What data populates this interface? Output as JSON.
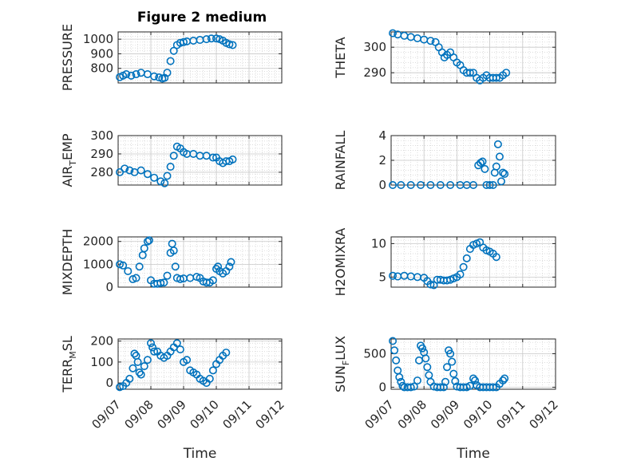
{
  "figure": {
    "title": "Figure 2 medium",
    "xlabel": "Time",
    "xtick_labels": [
      "09/07",
      "09/08",
      "09/09",
      "09/10",
      "09/11",
      "09/12"
    ],
    "marker_color": "#0072BD",
    "grid": true,
    "minor_grid": true
  },
  "chart_data": [
    {
      "type": "scatter",
      "ylabel_main": "PRESSURE",
      "ylabel_sub": "",
      "ylim": [
        700,
        1050
      ],
      "yticks": [
        800,
        900,
        1000
      ],
      "xlim": [
        0,
        5
      ],
      "points": [
        [
          0.05,
          740
        ],
        [
          0.15,
          750
        ],
        [
          0.25,
          760
        ],
        [
          0.4,
          750
        ],
        [
          0.55,
          760
        ],
        [
          0.7,
          770
        ],
        [
          0.9,
          760
        ],
        [
          1.1,
          745
        ],
        [
          1.25,
          738
        ],
        [
          1.35,
          730
        ],
        [
          1.42,
          735
        ],
        [
          1.5,
          770
        ],
        [
          1.6,
          850
        ],
        [
          1.7,
          920
        ],
        [
          1.8,
          960
        ],
        [
          1.9,
          975
        ],
        [
          2.0,
          980
        ],
        [
          2.1,
          985
        ],
        [
          2.3,
          990
        ],
        [
          2.5,
          995
        ],
        [
          2.7,
          1000
        ],
        [
          2.85,
          1005
        ],
        [
          3.0,
          1005
        ],
        [
          3.1,
          1000
        ],
        [
          3.2,
          990
        ],
        [
          3.3,
          975
        ],
        [
          3.4,
          965
        ],
        [
          3.5,
          960
        ]
      ]
    },
    {
      "type": "scatter",
      "ylabel_main": "THETA",
      "ylabel_sub": "",
      "ylim": [
        286,
        306
      ],
      "yticks": [
        290,
        300
      ],
      "xlim": [
        0,
        5
      ],
      "points": [
        [
          0.05,
          305.5
        ],
        [
          0.2,
          305
        ],
        [
          0.4,
          304.5
        ],
        [
          0.6,
          304
        ],
        [
          0.8,
          303.5
        ],
        [
          1.0,
          303
        ],
        [
          1.2,
          302.5
        ],
        [
          1.35,
          302
        ],
        [
          1.45,
          300
        ],
        [
          1.55,
          298
        ],
        [
          1.62,
          296
        ],
        [
          1.7,
          297
        ],
        [
          1.8,
          298
        ],
        [
          1.9,
          296
        ],
        [
          2.0,
          294
        ],
        [
          2.1,
          293
        ],
        [
          2.2,
          291
        ],
        [
          2.3,
          290
        ],
        [
          2.4,
          290
        ],
        [
          2.5,
          290
        ],
        [
          2.6,
          288
        ],
        [
          2.7,
          287
        ],
        [
          2.8,
          288
        ],
        [
          2.9,
          289
        ],
        [
          3.0,
          288
        ],
        [
          3.1,
          288
        ],
        [
          3.2,
          288
        ],
        [
          3.3,
          288
        ],
        [
          3.4,
          289
        ],
        [
          3.5,
          290
        ]
      ]
    },
    {
      "type": "scatter",
      "ylabel_main": "AIR",
      "ylabel_sub": "T",
      "ylabel_tail": "EMP",
      "ylim": [
        273,
        300
      ],
      "yticks": [
        280,
        290,
        300
      ],
      "xlim": [
        0,
        5
      ],
      "points": [
        [
          0.05,
          280
        ],
        [
          0.2,
          282
        ],
        [
          0.35,
          281
        ],
        [
          0.5,
          280
        ],
        [
          0.7,
          281
        ],
        [
          0.9,
          279
        ],
        [
          1.1,
          277
        ],
        [
          1.3,
          275
        ],
        [
          1.42,
          274
        ],
        [
          1.5,
          278
        ],
        [
          1.6,
          283
        ],
        [
          1.7,
          289
        ],
        [
          1.8,
          294
        ],
        [
          1.9,
          293
        ],
        [
          2.0,
          291
        ],
        [
          2.1,
          290
        ],
        [
          2.3,
          290
        ],
        [
          2.5,
          289
        ],
        [
          2.7,
          289
        ],
        [
          2.9,
          288
        ],
        [
          3.0,
          288
        ],
        [
          3.1,
          286
        ],
        [
          3.2,
          285
        ],
        [
          3.3,
          286
        ],
        [
          3.4,
          286
        ],
        [
          3.5,
          287
        ]
      ]
    },
    {
      "type": "scatter",
      "ylabel_main": "RAINFALL",
      "ylabel_sub": "",
      "ylim": [
        0,
        4
      ],
      "yticks": [
        0,
        2,
        4
      ],
      "xlim": [
        0,
        5
      ],
      "points": [
        [
          0.05,
          0
        ],
        [
          0.3,
          0
        ],
        [
          0.6,
          0
        ],
        [
          0.9,
          0
        ],
        [
          1.2,
          0
        ],
        [
          1.5,
          0
        ],
        [
          1.8,
          0
        ],
        [
          2.1,
          0
        ],
        [
          2.3,
          0
        ],
        [
          2.5,
          0
        ],
        [
          2.65,
          1.6
        ],
        [
          2.72,
          1.8
        ],
        [
          2.78,
          1.9
        ],
        [
          2.85,
          1.3
        ],
        [
          2.9,
          0
        ],
        [
          3.0,
          0
        ],
        [
          3.1,
          0
        ],
        [
          3.15,
          1.0
        ],
        [
          3.2,
          1.5
        ],
        [
          3.25,
          3.3
        ],
        [
          3.3,
          2.3
        ],
        [
          3.35,
          0.3
        ],
        [
          3.4,
          1.0
        ],
        [
          3.45,
          0.9
        ]
      ]
    },
    {
      "type": "scatter",
      "ylabel_main": "MIXDEPTH",
      "ylabel_sub": "",
      "ylim": [
        0,
        2200
      ],
      "yticks": [
        0,
        1000,
        2000
      ],
      "xlim": [
        0,
        5
      ],
      "points": [
        [
          0.05,
          1000
        ],
        [
          0.15,
          950
        ],
        [
          0.3,
          700
        ],
        [
          0.45,
          350
        ],
        [
          0.55,
          400
        ],
        [
          0.65,
          900
        ],
        [
          0.75,
          1400
        ],
        [
          0.8,
          1700
        ],
        [
          0.9,
          2000
        ],
        [
          0.95,
          2050
        ],
        [
          1.0,
          300
        ],
        [
          1.1,
          150
        ],
        [
          1.2,
          150
        ],
        [
          1.3,
          180
        ],
        [
          1.4,
          200
        ],
        [
          1.5,
          500
        ],
        [
          1.6,
          1500
        ],
        [
          1.65,
          1900
        ],
        [
          1.7,
          1600
        ],
        [
          1.75,
          900
        ],
        [
          1.8,
          400
        ],
        [
          1.9,
          350
        ],
        [
          2.0,
          380
        ],
        [
          2.2,
          400
        ],
        [
          2.4,
          450
        ],
        [
          2.5,
          400
        ],
        [
          2.6,
          250
        ],
        [
          2.7,
          200
        ],
        [
          2.8,
          200
        ],
        [
          2.9,
          300
        ],
        [
          3.0,
          800
        ],
        [
          3.05,
          900
        ],
        [
          3.1,
          700
        ],
        [
          3.2,
          600
        ],
        [
          3.3,
          700
        ],
        [
          3.4,
          900
        ],
        [
          3.45,
          1100
        ]
      ]
    },
    {
      "type": "scatter",
      "ylabel_main": "H2OMIXRA",
      "ylabel_sub": "",
      "ylim": [
        3.5,
        11
      ],
      "yticks": [
        5,
        10
      ],
      "xlim": [
        0,
        5
      ],
      "points": [
        [
          0.05,
          5.2
        ],
        [
          0.2,
          5.1
        ],
        [
          0.4,
          5.2
        ],
        [
          0.6,
          5.1
        ],
        [
          0.8,
          5.0
        ],
        [
          1.0,
          4.9
        ],
        [
          1.1,
          4.4
        ],
        [
          1.2,
          3.9
        ],
        [
          1.3,
          3.8
        ],
        [
          1.4,
          4.6
        ],
        [
          1.5,
          4.6
        ],
        [
          1.6,
          4.5
        ],
        [
          1.7,
          4.5
        ],
        [
          1.8,
          4.6
        ],
        [
          1.9,
          4.8
        ],
        [
          2.0,
          5.0
        ],
        [
          2.1,
          5.4
        ],
        [
          2.2,
          6.5
        ],
        [
          2.3,
          7.8
        ],
        [
          2.4,
          9.2
        ],
        [
          2.5,
          9.8
        ],
        [
          2.6,
          10.0
        ],
        [
          2.7,
          10.2
        ],
        [
          2.8,
          9.4
        ],
        [
          2.9,
          9.0
        ],
        [
          3.0,
          8.8
        ],
        [
          3.1,
          8.5
        ],
        [
          3.2,
          8.0
        ]
      ]
    },
    {
      "type": "scatter",
      "ylabel_main": "TERR",
      "ylabel_sub": "M",
      "ylabel_tail": "SL",
      "ylim": [
        -30,
        210
      ],
      "yticks": [
        0,
        100,
        200
      ],
      "xlim": [
        0,
        5
      ],
      "points": [
        [
          0.05,
          -20
        ],
        [
          0.15,
          -15
        ],
        [
          0.25,
          0
        ],
        [
          0.35,
          20
        ],
        [
          0.45,
          70
        ],
        [
          0.5,
          140
        ],
        [
          0.55,
          130
        ],
        [
          0.6,
          100
        ],
        [
          0.65,
          50
        ],
        [
          0.7,
          40
        ],
        [
          0.8,
          80
        ],
        [
          0.9,
          110
        ],
        [
          1.0,
          190
        ],
        [
          1.05,
          170
        ],
        [
          1.1,
          150
        ],
        [
          1.2,
          150
        ],
        [
          1.3,
          130
        ],
        [
          1.4,
          120
        ],
        [
          1.5,
          130
        ],
        [
          1.6,
          150
        ],
        [
          1.7,
          170
        ],
        [
          1.8,
          190
        ],
        [
          1.9,
          160
        ],
        [
          2.0,
          100
        ],
        [
          2.1,
          110
        ],
        [
          2.2,
          60
        ],
        [
          2.3,
          50
        ],
        [
          2.4,
          40
        ],
        [
          2.5,
          20
        ],
        [
          2.6,
          10
        ],
        [
          2.7,
          0
        ],
        [
          2.8,
          20
        ],
        [
          2.9,
          60
        ],
        [
          3.0,
          90
        ],
        [
          3.1,
          110
        ],
        [
          3.2,
          130
        ],
        [
          3.3,
          145
        ]
      ]
    },
    {
      "type": "scatter",
      "ylabel_main": "SUN",
      "ylabel_sub": "F",
      "ylabel_tail": "LUX",
      "ylim": [
        -30,
        720
      ],
      "yticks": [
        0,
        500
      ],
      "xlim": [
        0,
        5
      ],
      "points": [
        [
          0.05,
          690
        ],
        [
          0.1,
          550
        ],
        [
          0.15,
          400
        ],
        [
          0.2,
          250
        ],
        [
          0.25,
          150
        ],
        [
          0.3,
          80
        ],
        [
          0.35,
          20
        ],
        [
          0.4,
          0
        ],
        [
          0.5,
          0
        ],
        [
          0.6,
          0
        ],
        [
          0.7,
          10
        ],
        [
          0.8,
          100
        ],
        [
          0.85,
          400
        ],
        [
          0.9,
          620
        ],
        [
          0.95,
          580
        ],
        [
          1.0,
          520
        ],
        [
          1.05,
          430
        ],
        [
          1.1,
          300
        ],
        [
          1.15,
          180
        ],
        [
          1.2,
          80
        ],
        [
          1.3,
          10
        ],
        [
          1.4,
          0
        ],
        [
          1.5,
          0
        ],
        [
          1.6,
          0
        ],
        [
          1.65,
          80
        ],
        [
          1.7,
          300
        ],
        [
          1.75,
          550
        ],
        [
          1.8,
          500
        ],
        [
          1.85,
          380
        ],
        [
          1.9,
          200
        ],
        [
          1.95,
          90
        ],
        [
          2.0,
          10
        ],
        [
          2.1,
          0
        ],
        [
          2.2,
          0
        ],
        [
          2.3,
          0
        ],
        [
          2.4,
          20
        ],
        [
          2.5,
          130
        ],
        [
          2.55,
          100
        ],
        [
          2.6,
          30
        ],
        [
          2.7,
          0
        ],
        [
          2.8,
          0
        ],
        [
          2.9,
          0
        ],
        [
          3.0,
          0
        ],
        [
          3.1,
          0
        ],
        [
          3.2,
          0
        ],
        [
          3.3,
          50
        ],
        [
          3.4,
          100
        ],
        [
          3.45,
          130
        ]
      ]
    }
  ]
}
